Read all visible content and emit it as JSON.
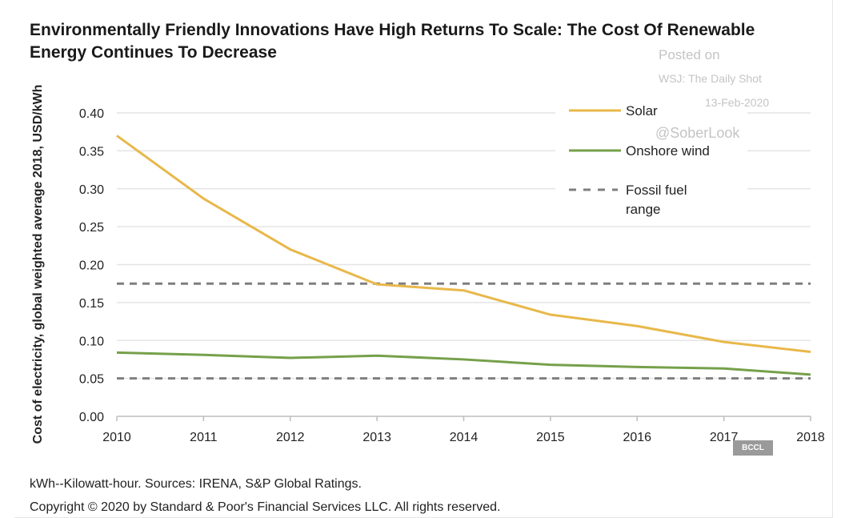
{
  "chart_data": {
    "type": "line",
    "title": "Environmentally Friendly Innovations Have High Returns To Scale: The Cost Of Renewable Energy Continues To Decrease",
    "ylabel": "Cost of electricity, global weighted average 2018, USD/kWh",
    "xlabel": "",
    "x": [
      2010,
      2011,
      2012,
      2013,
      2014,
      2015,
      2016,
      2017,
      2018
    ],
    "ylim": [
      0,
      0.4
    ],
    "yticks": [
      "0.00",
      "0.05",
      "0.10",
      "0.15",
      "0.20",
      "0.25",
      "0.30",
      "0.35",
      "0.40"
    ],
    "grid": true,
    "legend_placement": "top-right",
    "series": [
      {
        "name": "Solar",
        "color": "#e8b84a",
        "values": [
          0.37,
          0.287,
          0.22,
          0.174,
          0.166,
          0.134,
          0.119,
          0.098,
          0.085
        ]
      },
      {
        "name": "Onshore wind",
        "color": "#76a04a",
        "values": [
          0.084,
          0.081,
          0.077,
          0.08,
          0.075,
          0.068,
          0.065,
          0.063,
          0.055
        ]
      }
    ],
    "fossil_range": {
      "name": "Fossil fuel range",
      "color": "#7f7f7f",
      "values": [
        0.05,
        0.175
      ]
    }
  },
  "watermark": {
    "line1": "Posted on",
    "line2": "WSJ: The Daily Shot",
    "line3": "13-Feb-2020",
    "line4": "@SoberLook"
  },
  "footnote": "kWh--Kilowatt-hour. Sources: IRENA, S&P Global Ratings.",
  "copyright": "Copyright © 2020 by Standard & Poor's Financial Services LLC. All rights reserved.",
  "badge": "BCCL"
}
